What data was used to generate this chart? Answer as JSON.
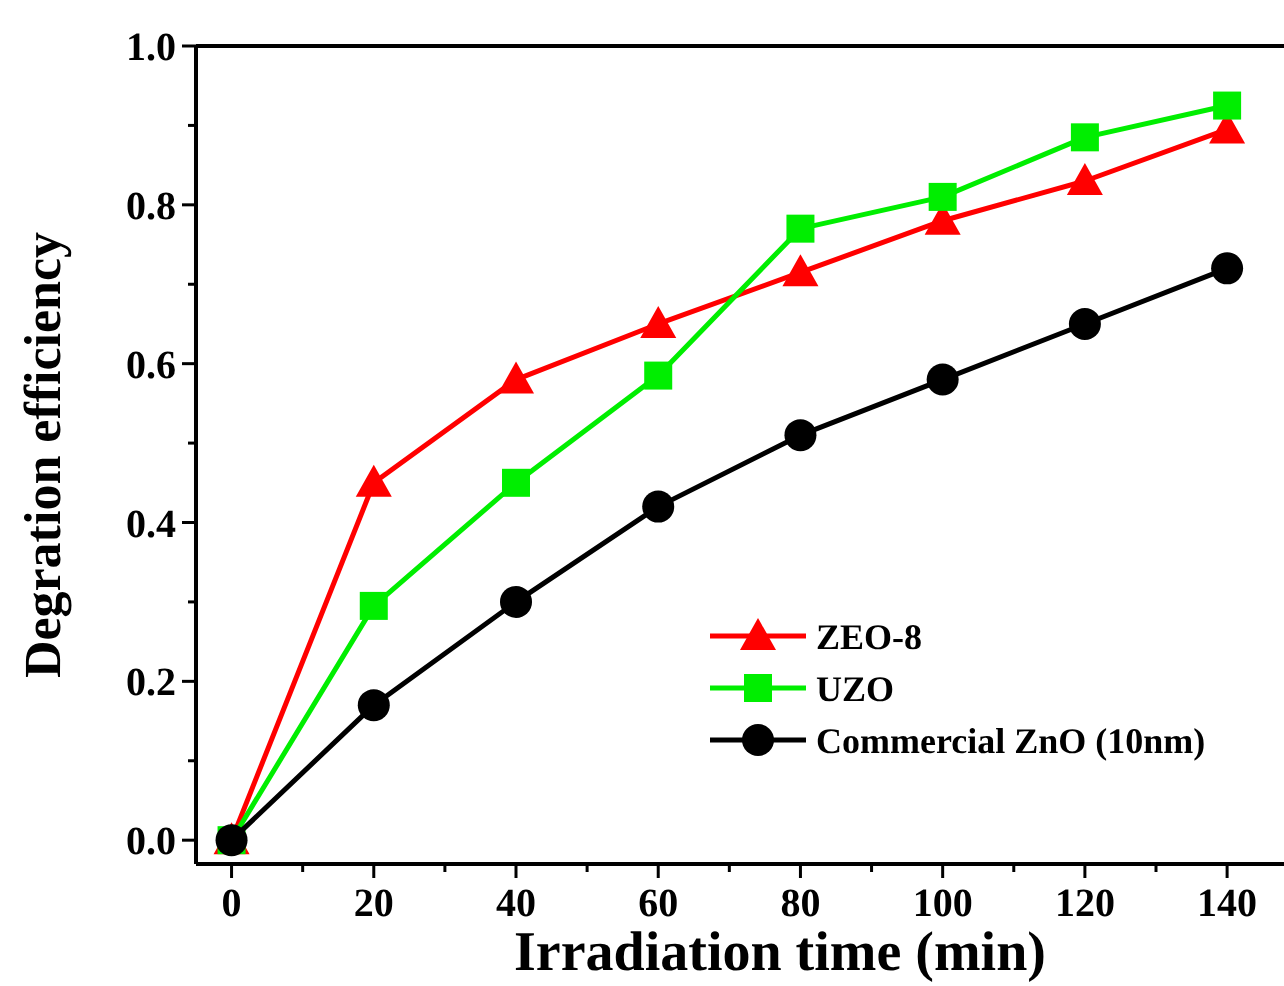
{
  "chart_data": {
    "type": "line",
    "xlabel": "Irradiation time (min)",
    "ylabel": "Degration efficiency",
    "x": [
      0,
      20,
      40,
      60,
      80,
      100,
      120,
      140
    ],
    "series": [
      {
        "name": "ZEO-8",
        "color": "#ff0000",
        "marker": "triangle",
        "values": [
          0,
          0.45,
          0.58,
          0.65,
          0.715,
          0.78,
          0.83,
          0.895
        ]
      },
      {
        "name": "UZO",
        "color": "#00ee00",
        "marker": "square",
        "values": [
          0,
          0.295,
          0.45,
          0.585,
          0.77,
          0.81,
          0.885,
          0.925
        ]
      },
      {
        "name": "Commercial ZnO (10nm)",
        "color": "#000000",
        "marker": "circle",
        "values": [
          0,
          0.17,
          0.3,
          0.42,
          0.51,
          0.58,
          0.65,
          0.72
        ]
      }
    ],
    "xlim": [
      -5,
      148
    ],
    "xticks": [
      0,
      {
        "value": 10,
        "label": null
      },
      20,
      {
        "value": 30,
        "label": null
      },
      40,
      {
        "value": 50,
        "label": null
      },
      60,
      {
        "value": 70,
        "label": null
      },
      80,
      {
        "value": 90,
        "label": null
      },
      100,
      {
        "value": 110,
        "label": null
      },
      120,
      {
        "value": 130,
        "label": null
      },
      140
    ],
    "ylim": [
      -0.03,
      1.0
    ],
    "yticks": [
      "0.0",
      {
        "value": 0.1,
        "label": null
      },
      0.2,
      {
        "value": 0.3,
        "label": null
      },
      0.4,
      {
        "value": 0.5,
        "label": null
      },
      0.6,
      {
        "value": 0.7,
        "label": null
      },
      0.8,
      {
        "value": 0.9,
        "label": null
      },
      "1.0"
    ],
    "grid": false,
    "legend": "bottom right",
    "line_style": "solid"
  }
}
